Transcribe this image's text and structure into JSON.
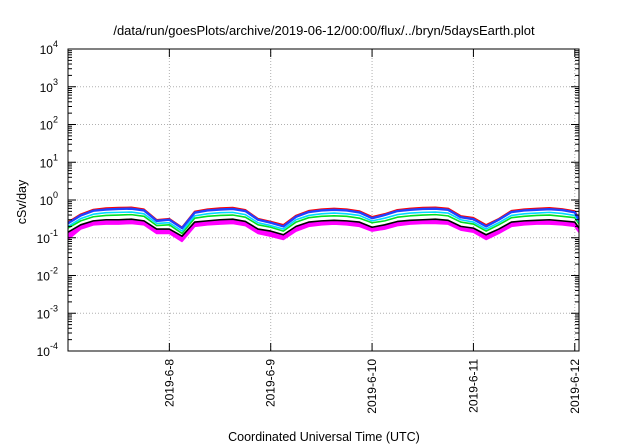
{
  "chart_data": {
    "type": "line",
    "title": "/data/run/goesPlots/archive/2019-06-12/00:00/flux/../bryn/5daysEarth.plot",
    "xlabel": "Coordinated Universal Time (UTC)",
    "ylabel": "cSv/day",
    "yscale": "log",
    "ylim": [
      0.0001,
      10000
    ],
    "xlim": [
      "2019-06-07T00:00",
      "2019-06-12T01:00"
    ],
    "grid": true,
    "y_ticks": [
      {
        "base": "10",
        "exp": "-4"
      },
      {
        "base": "10",
        "exp": "-3"
      },
      {
        "base": "10",
        "exp": "-2"
      },
      {
        "base": "10",
        "exp": "-1"
      },
      {
        "base": "10",
        "exp": "0"
      },
      {
        "base": "10",
        "exp": "1"
      },
      {
        "base": "10",
        "exp": "2"
      },
      {
        "base": "10",
        "exp": "3"
      },
      {
        "base": "10",
        "exp": "4"
      }
    ],
    "x_ticks": [
      {
        "label": "2019-6-8",
        "t": "2019-06-08T00:00"
      },
      {
        "label": "2019-6-9",
        "t": "2019-06-09T00:00"
      },
      {
        "label": "2019-6-10",
        "t": "2019-06-10T00:00"
      },
      {
        "label": "2019-6-11",
        "t": "2019-06-11T00:00"
      },
      {
        "label": "2019-6-12",
        "t": "2019-06-12T00:00"
      }
    ],
    "x": [
      "2019-06-07T00:00",
      "2019-06-07T03:00",
      "2019-06-07T06:00",
      "2019-06-07T09:00",
      "2019-06-07T12:00",
      "2019-06-07T15:00",
      "2019-06-07T18:00",
      "2019-06-07T21:00",
      "2019-06-08T00:00",
      "2019-06-08T03:00",
      "2019-06-08T06:00",
      "2019-06-08T09:00",
      "2019-06-08T12:00",
      "2019-06-08T15:00",
      "2019-06-08T18:00",
      "2019-06-08T21:00",
      "2019-06-09T00:00",
      "2019-06-09T03:00",
      "2019-06-09T06:00",
      "2019-06-09T09:00",
      "2019-06-09T12:00",
      "2019-06-09T15:00",
      "2019-06-09T18:00",
      "2019-06-09T21:00",
      "2019-06-10T00:00",
      "2019-06-10T03:00",
      "2019-06-10T06:00",
      "2019-06-10T09:00",
      "2019-06-10T12:00",
      "2019-06-10T15:00",
      "2019-06-10T18:00",
      "2019-06-10T21:00",
      "2019-06-11T00:00",
      "2019-06-11T03:00",
      "2019-06-11T06:00",
      "2019-06-11T09:00",
      "2019-06-11T12:00",
      "2019-06-11T15:00",
      "2019-06-11T18:00",
      "2019-06-11T21:00",
      "2019-06-12T00:00",
      "2019-06-12T01:00"
    ],
    "series": [
      {
        "color": "#ff00ff",
        "values": [
          0.09,
          0.17,
          0.22,
          0.23,
          0.23,
          0.24,
          0.22,
          0.13,
          0.13,
          0.08,
          0.2,
          0.22,
          0.23,
          0.24,
          0.21,
          0.13,
          0.11,
          0.09,
          0.15,
          0.2,
          0.22,
          0.23,
          0.22,
          0.2,
          0.15,
          0.17,
          0.21,
          0.23,
          0.24,
          0.24,
          0.23,
          0.16,
          0.14,
          0.09,
          0.13,
          0.2,
          0.22,
          0.23,
          0.23,
          0.22,
          0.2,
          0.14
        ]
      },
      {
        "color": "#000000",
        "values": [
          0.14,
          0.22,
          0.28,
          0.3,
          0.3,
          0.31,
          0.28,
          0.17,
          0.17,
          0.11,
          0.26,
          0.28,
          0.3,
          0.31,
          0.27,
          0.17,
          0.15,
          0.12,
          0.2,
          0.26,
          0.28,
          0.29,
          0.28,
          0.26,
          0.19,
          0.22,
          0.27,
          0.29,
          0.3,
          0.31,
          0.29,
          0.2,
          0.18,
          0.12,
          0.17,
          0.26,
          0.28,
          0.29,
          0.3,
          0.28,
          0.26,
          0.18
        ]
      },
      {
        "color": "#00e020",
        "values": [
          0.18,
          0.28,
          0.36,
          0.39,
          0.4,
          0.41,
          0.37,
          0.21,
          0.22,
          0.13,
          0.33,
          0.37,
          0.39,
          0.4,
          0.35,
          0.22,
          0.19,
          0.15,
          0.26,
          0.34,
          0.37,
          0.38,
          0.37,
          0.33,
          0.25,
          0.28,
          0.35,
          0.38,
          0.4,
          0.41,
          0.38,
          0.26,
          0.23,
          0.15,
          0.22,
          0.34,
          0.37,
          0.39,
          0.4,
          0.37,
          0.34,
          0.23
        ]
      },
      {
        "color": "#00d8ff",
        "values": [
          0.2,
          0.32,
          0.42,
          0.46,
          0.47,
          0.48,
          0.43,
          0.24,
          0.25,
          0.15,
          0.38,
          0.43,
          0.46,
          0.47,
          0.41,
          0.25,
          0.21,
          0.17,
          0.3,
          0.39,
          0.43,
          0.45,
          0.43,
          0.39,
          0.28,
          0.33,
          0.41,
          0.45,
          0.47,
          0.48,
          0.45,
          0.3,
          0.26,
          0.17,
          0.25,
          0.39,
          0.43,
          0.45,
          0.47,
          0.44,
          0.39,
          0.26
        ]
      },
      {
        "color": "#ff0000",
        "values": [
          0.26,
          0.42,
          0.56,
          0.61,
          0.63,
          0.64,
          0.57,
          0.3,
          0.32,
          0.19,
          0.5,
          0.57,
          0.61,
          0.63,
          0.55,
          0.32,
          0.27,
          0.22,
          0.39,
          0.52,
          0.57,
          0.6,
          0.57,
          0.51,
          0.36,
          0.43,
          0.55,
          0.6,
          0.63,
          0.64,
          0.6,
          0.38,
          0.34,
          0.22,
          0.32,
          0.52,
          0.57,
          0.6,
          0.62,
          0.58,
          0.51,
          0.33
        ]
      },
      {
        "color": "#2040ff",
        "values": [
          0.24,
          0.39,
          0.52,
          0.56,
          0.58,
          0.59,
          0.53,
          0.28,
          0.3,
          0.18,
          0.46,
          0.53,
          0.56,
          0.58,
          0.51,
          0.3,
          0.25,
          0.2,
          0.36,
          0.48,
          0.53,
          0.55,
          0.53,
          0.47,
          0.33,
          0.4,
          0.51,
          0.55,
          0.58,
          0.59,
          0.55,
          0.35,
          0.31,
          0.2,
          0.3,
          0.48,
          0.53,
          0.55,
          0.57,
          0.54,
          0.47,
          0.3
        ]
      }
    ]
  }
}
